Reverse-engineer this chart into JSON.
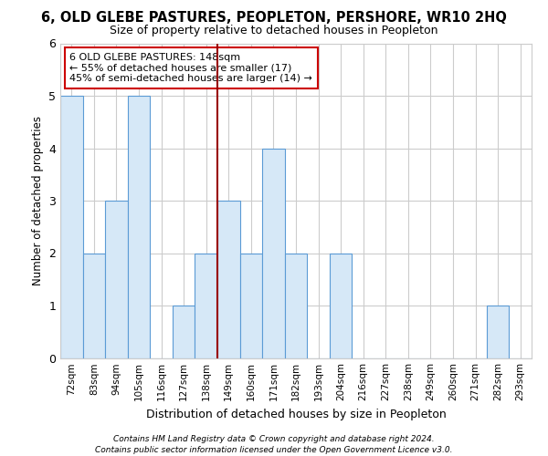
{
  "title": "6, OLD GLEBE PASTURES, PEOPLETON, PERSHORE, WR10 2HQ",
  "subtitle": "Size of property relative to detached houses in Peopleton",
  "xlabel": "Distribution of detached houses by size in Peopleton",
  "ylabel": "Number of detached properties",
  "categories": [
    "72sqm",
    "83sqm",
    "94sqm",
    "105sqm",
    "116sqm",
    "127sqm",
    "138sqm",
    "149sqm",
    "160sqm",
    "171sqm",
    "182sqm",
    "193sqm",
    "204sqm",
    "216sqm",
    "227sqm",
    "238sqm",
    "249sqm",
    "260sqm",
    "271sqm",
    "282sqm",
    "293sqm"
  ],
  "values": [
    5,
    2,
    3,
    5,
    0,
    1,
    2,
    3,
    2,
    4,
    2,
    0,
    2,
    0,
    0,
    0,
    0,
    0,
    0,
    1,
    0
  ],
  "bar_color": "#d6e8f7",
  "bar_edge_color": "#5b9bd5",
  "property_line_x": 6.5,
  "annotation_title": "6 OLD GLEBE PASTURES: 148sqm",
  "annotation_line1": "← 55% of detached houses are smaller (17)",
  "annotation_line2": "45% of semi-detached houses are larger (14) →",
  "annotation_box_color": "#ffffff",
  "annotation_box_edge": "#cc0000",
  "line_color": "#990000",
  "ylim": [
    0,
    6
  ],
  "yticks": [
    0,
    1,
    2,
    3,
    4,
    5,
    6
  ],
  "footnote1": "Contains HM Land Registry data © Crown copyright and database right 2024.",
  "footnote2": "Contains public sector information licensed under the Open Government Licence v3.0.",
  "bg_color": "#ffffff",
  "grid_color": "#cccccc",
  "title_fontsize": 10.5,
  "subtitle_fontsize": 9,
  "annotation_fontsize": 8,
  "ylabel_fontsize": 8.5,
  "xlabel_fontsize": 9,
  "tick_fontsize": 7.5,
  "footnote_fontsize": 6.5
}
